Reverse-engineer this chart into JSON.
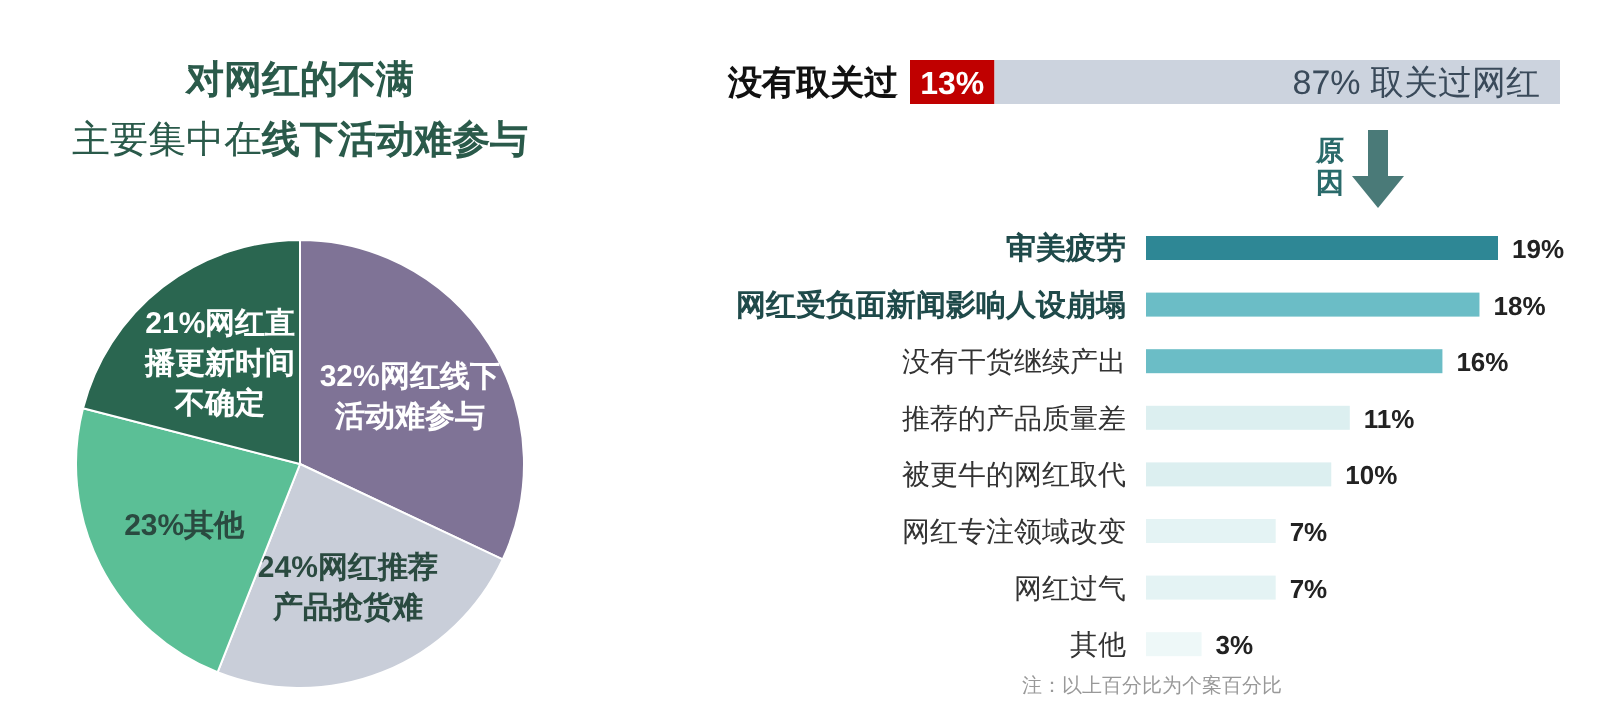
{
  "chart_data": [
    {
      "type": "pie",
      "title": "对网红的不满",
      "subtitle": "主要集中在**线下活动难参与**",
      "categories": [
        "网红线下活动难参与",
        "网红推荐产品抢货难",
        "其他",
        "网红直播更新时间不确定"
      ],
      "values": [
        32,
        24,
        23,
        21
      ],
      "value_labels": [
        "32%",
        "24%",
        "23%",
        "21%"
      ],
      "colors": [
        "#7f7396",
        "#c9ced9",
        "#5bbf96",
        "#2a6650"
      ]
    },
    {
      "type": "bar",
      "orientation": "horizontal",
      "stacked": true,
      "categories": [
        null
      ],
      "series": [
        {
          "name": "没有取关过",
          "color": "#c00000",
          "values": [
            13
          ],
          "value_labels": [
            "13%"
          ]
        },
        {
          "name": "取关过网红",
          "color": "#ccd3de",
          "values": [
            87
          ],
          "value_labels": [
            "87%"
          ]
        }
      ],
      "annotations": [
        "原因"
      ]
    },
    {
      "type": "bar",
      "orientation": "horizontal",
      "categories": [
        "审美疲劳",
        "网红受负面新闻影响人设崩塌",
        "没有干货继续产出",
        "推荐的产品质量差",
        "被更牛的网红取代",
        "网红专注领域改变",
        "网红过气",
        "其他"
      ],
      "values": [
        19,
        18,
        16,
        11,
        10,
        7,
        7,
        3
      ],
      "value_labels": [
        "19%",
        "18%",
        "16%",
        "11%",
        "10%",
        "7%",
        "7%",
        "3%"
      ],
      "colors": [
        "#2e8795",
        "#6bbdc6",
        "#6bbdc6",
        "#dcefF0",
        "#dcefF0",
        "#e4f3f4",
        "#e4f3f4",
        "#eef8f8"
      ],
      "annotations": [
        "注：以上百分比为个案百分比"
      ]
    }
  ]
}
